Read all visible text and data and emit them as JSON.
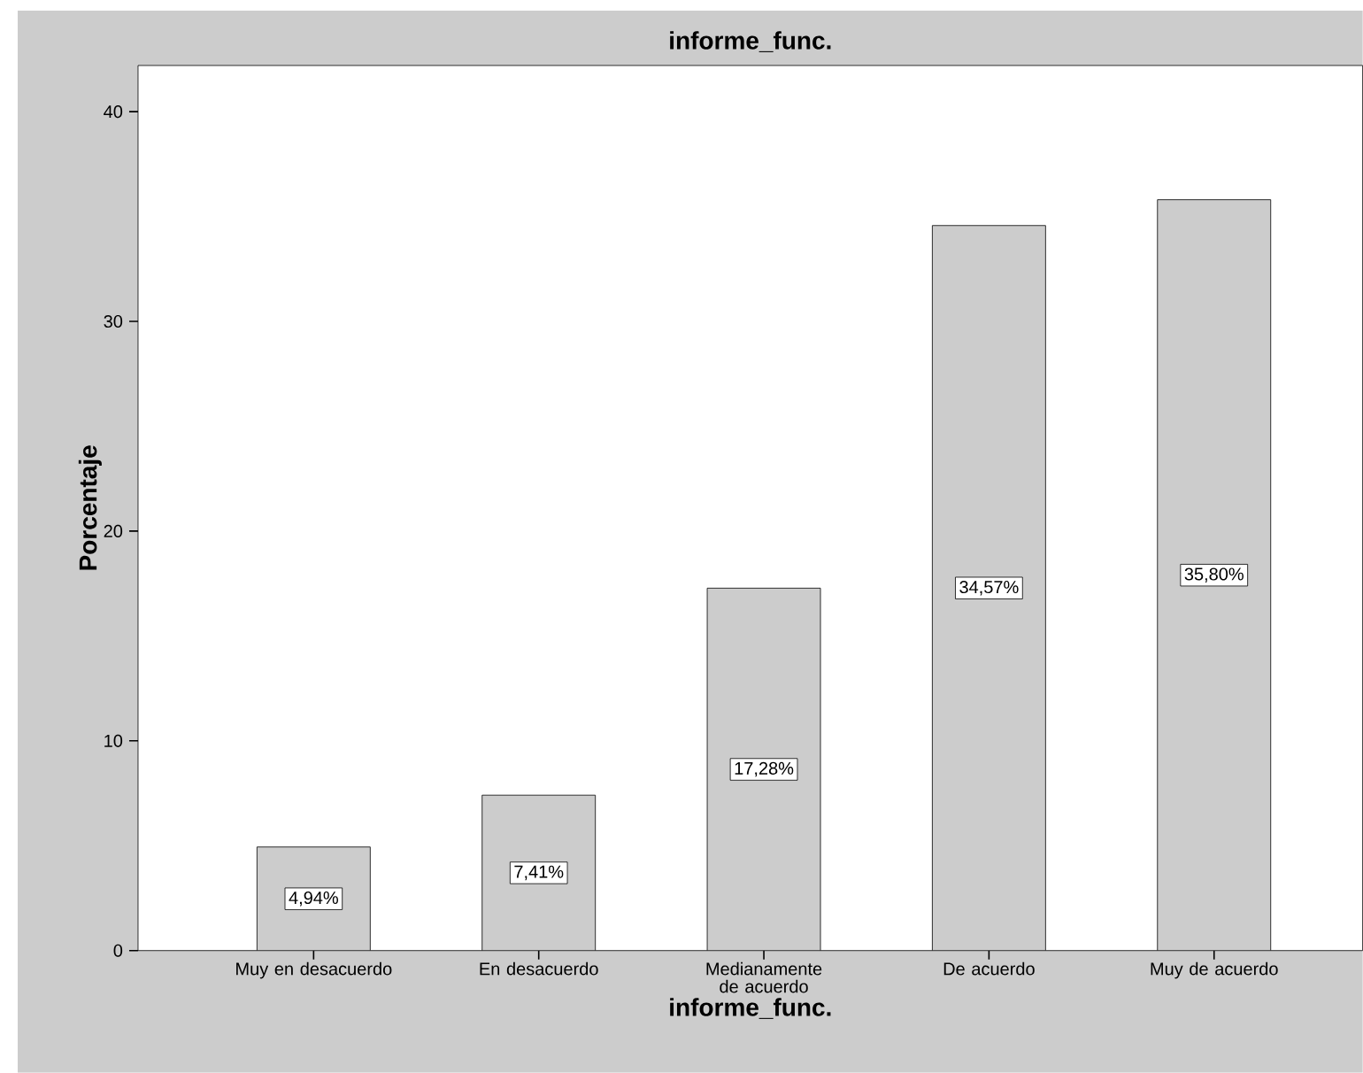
{
  "chart_data": {
    "type": "bar",
    "title": "informe_func.",
    "xlabel": "informe_func.",
    "ylabel": "Porcentaje",
    "categories": [
      "Muy en desacuerdo",
      "En desacuerdo",
      "Medianamente de acuerdo",
      "De acuerdo",
      "Muy de acuerdo"
    ],
    "values": [
      4.94,
      7.41,
      17.28,
      34.57,
      35.8
    ],
    "value_labels": [
      "4,94%",
      "7,41%",
      "17,28%",
      "34,57%",
      "35,80%"
    ],
    "color": "#cccccc",
    "ylim": [
      0,
      42.2
    ],
    "yticks": [
      0,
      10,
      20,
      30,
      40
    ]
  }
}
